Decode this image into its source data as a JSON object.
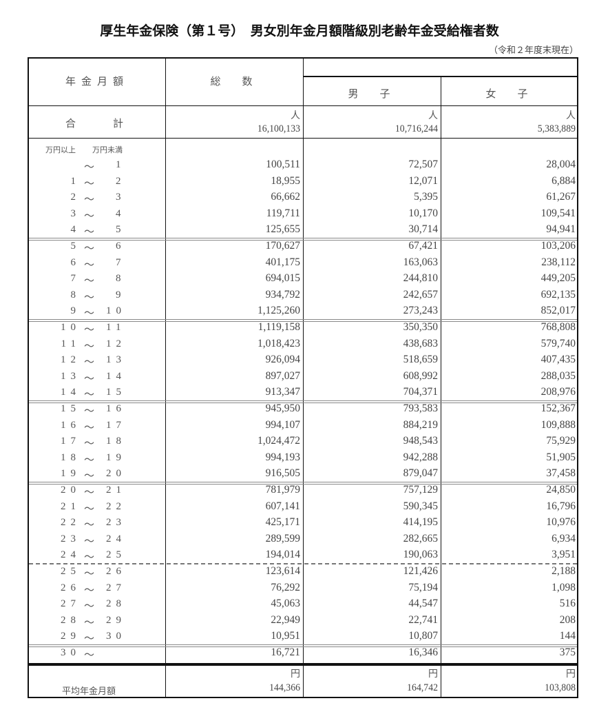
{
  "title": "厚生年金保険（第１号）　男女別年金月額階級別老齢年金受給権者数",
  "as_of": "（令和２年度末現在）",
  "header": {
    "amount": "年金月額",
    "total": "総　数",
    "male": "男　子",
    "female": "女　子"
  },
  "total_row": {
    "label": "合　　計",
    "unit": "人",
    "total": "16,100,133",
    "male": "10,716,244",
    "female": "5,383,889"
  },
  "range_header": {
    "from": "万円以上",
    "to": "万円未満"
  },
  "tilde": "～",
  "rows": [
    {
      "from": "",
      "to": "1",
      "total": "100,511",
      "male": "72,507",
      "female": "28,004"
    },
    {
      "from": "1",
      "to": "2",
      "total": "18,955",
      "male": "12,071",
      "female": "6,884"
    },
    {
      "from": "2",
      "to": "3",
      "total": "66,662",
      "male": "5,395",
      "female": "61,267"
    },
    {
      "from": "3",
      "to": "4",
      "total": "119,711",
      "male": "10,170",
      "female": "109,541"
    },
    {
      "from": "4",
      "to": "5",
      "total": "125,655",
      "male": "30,714",
      "female": "94,941"
    },
    {
      "from": "5",
      "to": "6",
      "total": "170,627",
      "male": "67,421",
      "female": "103,206"
    },
    {
      "from": "6",
      "to": "7",
      "total": "401,175",
      "male": "163,063",
      "female": "238,112"
    },
    {
      "from": "7",
      "to": "8",
      "total": "694,015",
      "male": "244,810",
      "female": "449,205"
    },
    {
      "from": "8",
      "to": "9",
      "total": "934,792",
      "male": "242,657",
      "female": "692,135"
    },
    {
      "from": "9",
      "to": "10",
      "total": "1,125,260",
      "male": "273,243",
      "female": "852,017"
    },
    {
      "from": "10",
      "to": "11",
      "total": "1,119,158",
      "male": "350,350",
      "female": "768,808"
    },
    {
      "from": "11",
      "to": "12",
      "total": "1,018,423",
      "male": "438,683",
      "female": "579,740"
    },
    {
      "from": "12",
      "to": "13",
      "total": "926,094",
      "male": "518,659",
      "female": "407,435"
    },
    {
      "from": "13",
      "to": "14",
      "total": "897,027",
      "male": "608,992",
      "female": "288,035"
    },
    {
      "from": "14",
      "to": "15",
      "total": "913,347",
      "male": "704,371",
      "female": "208,976"
    },
    {
      "from": "15",
      "to": "16",
      "total": "945,950",
      "male": "793,583",
      "female": "152,367"
    },
    {
      "from": "16",
      "to": "17",
      "total": "994,107",
      "male": "884,219",
      "female": "109,888"
    },
    {
      "from": "17",
      "to": "18",
      "total": "1,024,472",
      "male": "948,543",
      "female": "75,929"
    },
    {
      "from": "18",
      "to": "19",
      "total": "994,193",
      "male": "942,288",
      "female": "51,905"
    },
    {
      "from": "19",
      "to": "20",
      "total": "916,505",
      "male": "879,047",
      "female": "37,458"
    },
    {
      "from": "20",
      "to": "21",
      "total": "781,979",
      "male": "757,129",
      "female": "24,850"
    },
    {
      "from": "21",
      "to": "22",
      "total": "607,141",
      "male": "590,345",
      "female": "16,796"
    },
    {
      "from": "22",
      "to": "23",
      "total": "425,171",
      "male": "414,195",
      "female": "10,976"
    },
    {
      "from": "23",
      "to": "24",
      "total": "289,599",
      "male": "282,665",
      "female": "6,934"
    },
    {
      "from": "24",
      "to": "25",
      "total": "194,014",
      "male": "190,063",
      "female": "3,951"
    },
    {
      "from": "25",
      "to": "26",
      "total": "123,614",
      "male": "121,426",
      "female": "2,188"
    },
    {
      "from": "26",
      "to": "27",
      "total": "76,292",
      "male": "75,194",
      "female": "1,098"
    },
    {
      "from": "27",
      "to": "28",
      "total": "45,063",
      "male": "44,547",
      "female": "516"
    },
    {
      "from": "28",
      "to": "29",
      "total": "22,949",
      "male": "22,741",
      "female": "208"
    },
    {
      "from": "29",
      "to": "30",
      "total": "10,951",
      "male": "10,807",
      "female": "144"
    },
    {
      "from": "30",
      "to": "",
      "total": "16,721",
      "male": "16,346",
      "female": "375"
    }
  ],
  "average_row": {
    "label": "平均年金月額",
    "unit": "円",
    "total": "144,366",
    "male": "164,742",
    "female": "103,808"
  }
}
